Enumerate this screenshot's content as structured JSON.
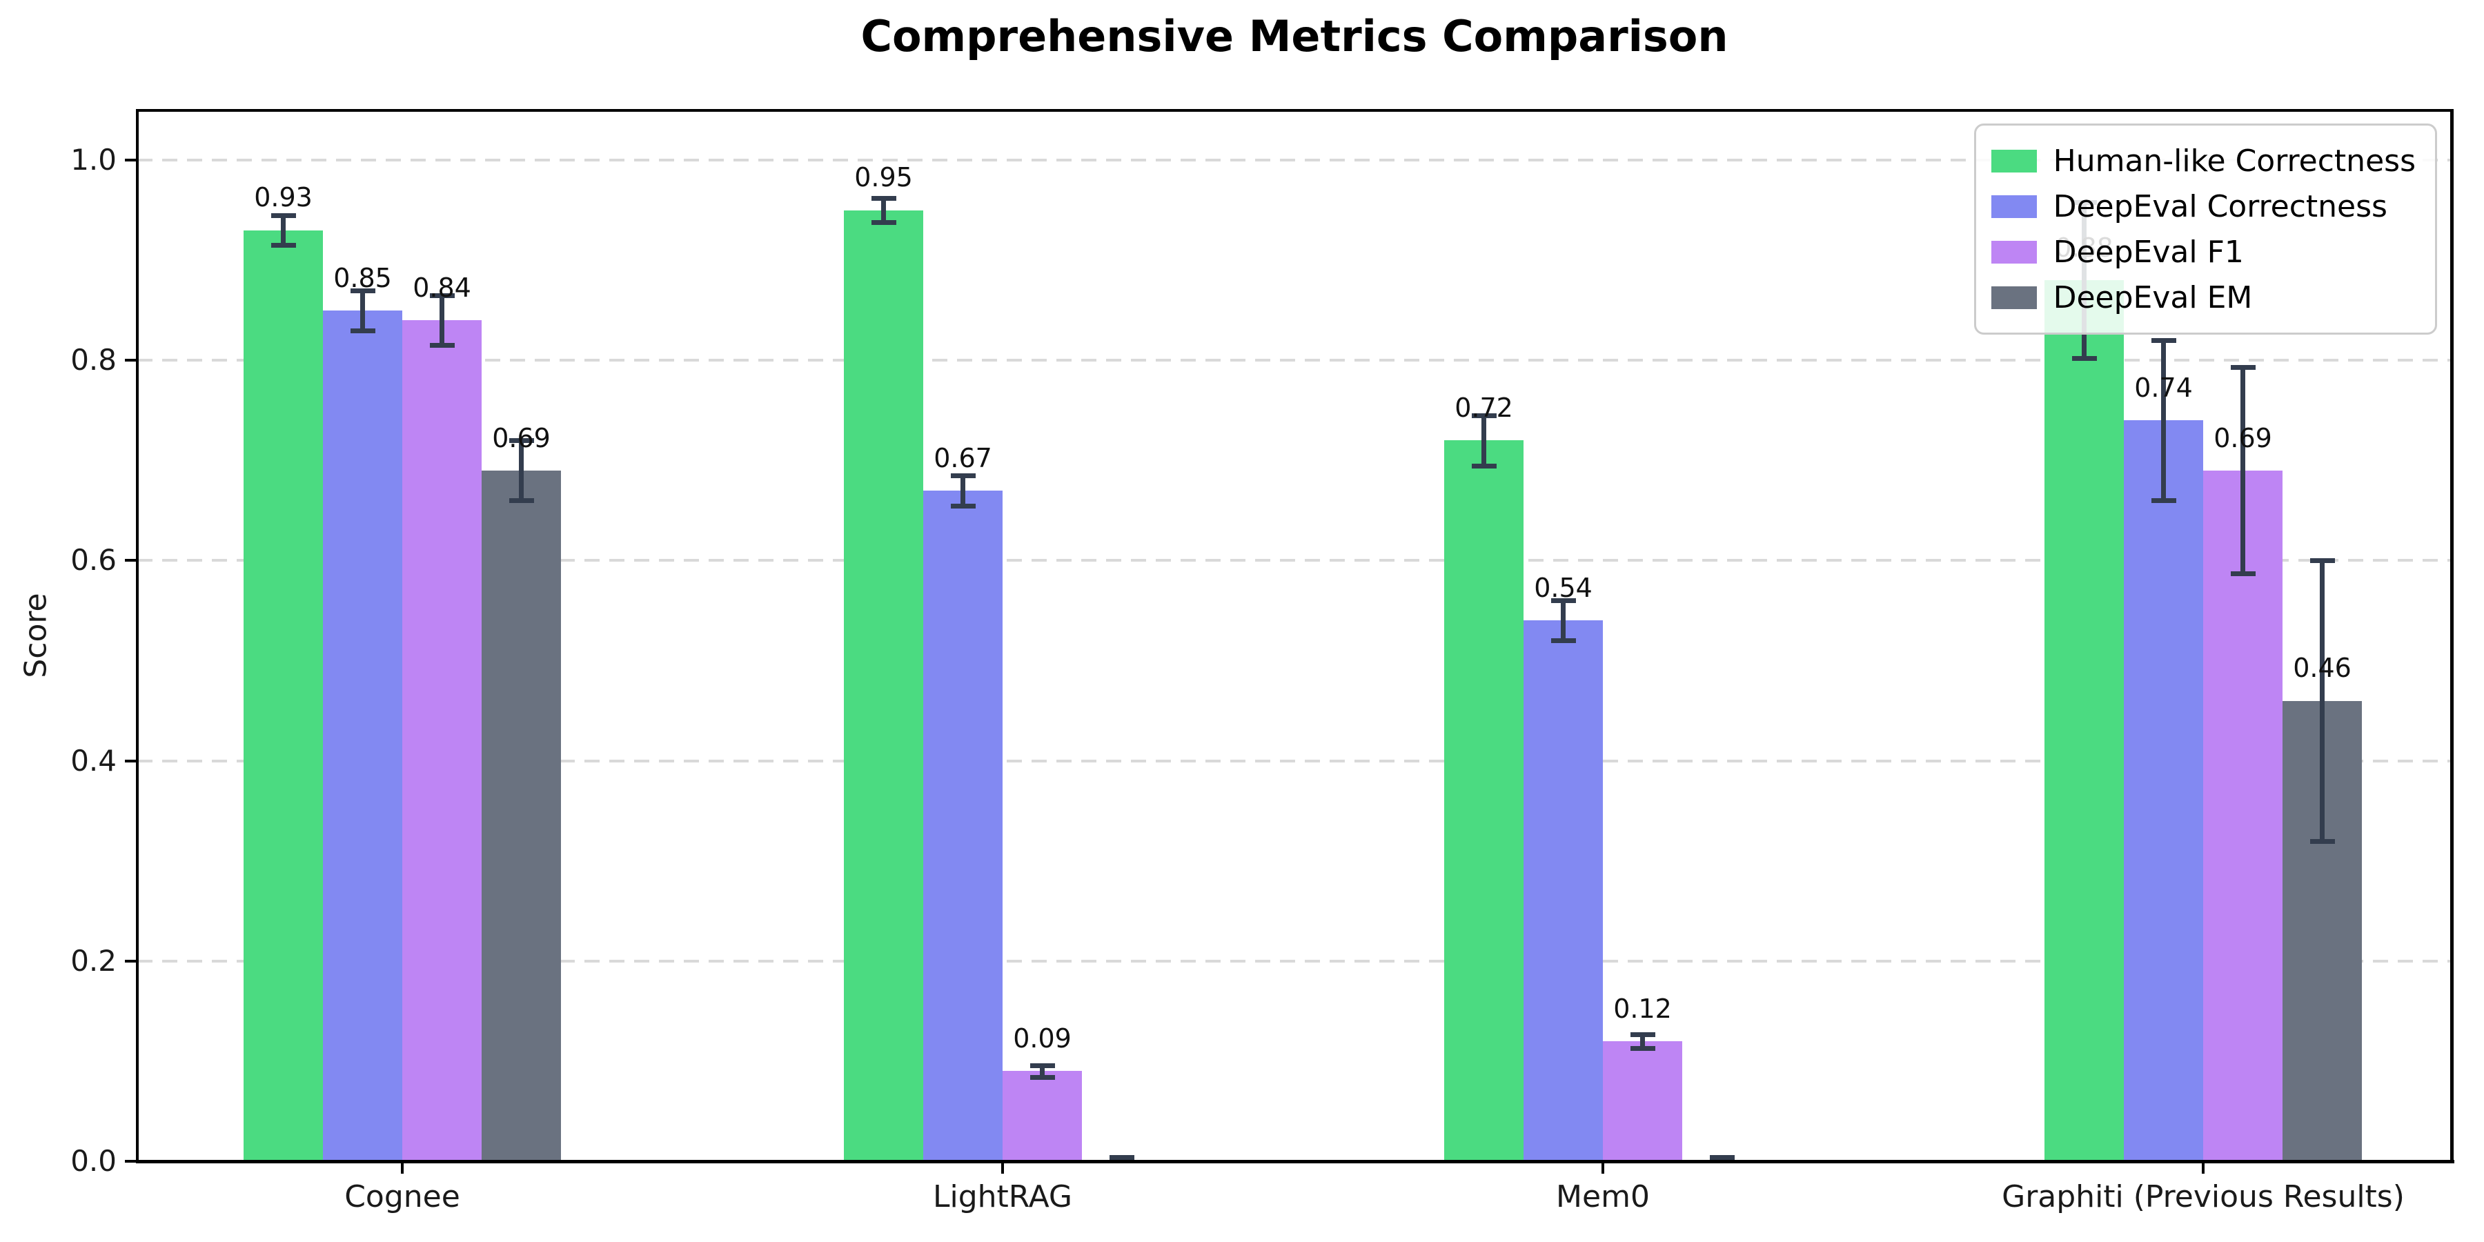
{
  "chart_data": {
    "type": "bar",
    "title": "Comprehensive Metrics Comparison",
    "ylabel": "Score",
    "xlabel": "",
    "categories": [
      "Cognee",
      "LightRAG",
      "Mem0",
      "Graphiti (Previous Results)"
    ],
    "series": [
      {
        "name": "Human-like Correctness",
        "color": "#4bdb81",
        "values": [
          0.93,
          0.95,
          0.72,
          0.88
        ],
        "errors": [
          0.015,
          0.012,
          0.025,
          0.078
        ],
        "labels": [
          "0.93",
          "0.95",
          "0.72",
          "0.88"
        ]
      },
      {
        "name": "DeepEval Correctness",
        "color": "#8289f2",
        "values": [
          0.85,
          0.67,
          0.54,
          0.74
        ],
        "errors": [
          0.02,
          0.015,
          0.02,
          0.08
        ],
        "labels": [
          "0.85",
          "0.67",
          "0.54",
          "0.74"
        ]
      },
      {
        "name": "DeepEval F1",
        "color": "#be85f4",
        "values": [
          0.84,
          0.09,
          0.12,
          0.69
        ],
        "errors": [
          0.025,
          0.006,
          0.007,
          0.103
        ],
        "labels": [
          "0.84",
          "0.09",
          "0.12",
          "0.69"
        ]
      },
      {
        "name": "DeepEval EM",
        "color": "#6a7280",
        "values": [
          0.69,
          0.0,
          0.0,
          0.46
        ],
        "errors": [
          0.03,
          0.004,
          0.004,
          0.14
        ],
        "labels": [
          "0.69",
          "",
          "",
          "0.46"
        ]
      }
    ],
    "yticks": [
      "0.0",
      "0.2",
      "0.4",
      "0.6",
      "0.8",
      "1.0"
    ],
    "ytick_values": [
      0.0,
      0.2,
      0.4,
      0.6,
      0.8,
      1.0
    ],
    "ylim": [
      0,
      1.05
    ],
    "grid": "horizontal-dashed",
    "grid_color": "#d9d9d9",
    "legend_position": "upper-right",
    "error_bar_color": "#333d4e"
  }
}
